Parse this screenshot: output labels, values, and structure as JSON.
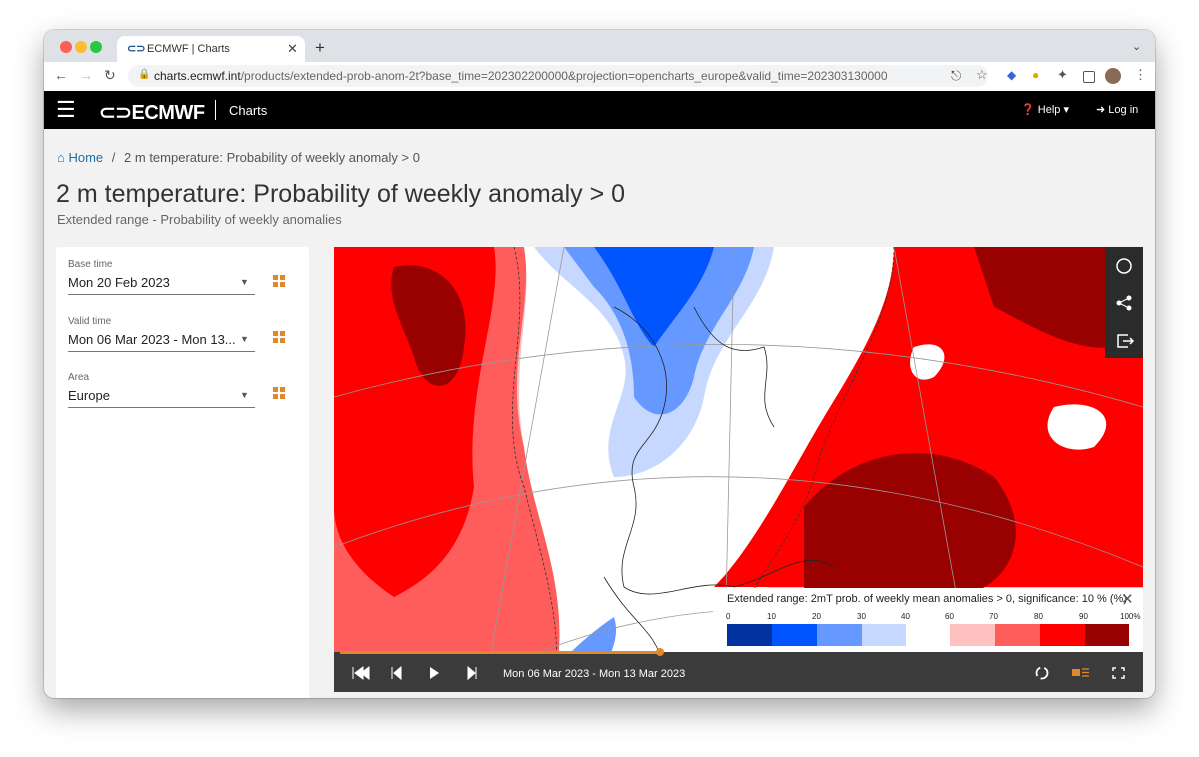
{
  "browser": {
    "tab_title": "ECMWF | Charts",
    "url_host": "charts.ecmwf.int",
    "url_path": "/products/extended-prob-anom-2t?base_time=202302200000&projection=opencharts_europe&valid_time=202303130000"
  },
  "navbar": {
    "brand": "ECMWF",
    "section": "Charts",
    "help": "Help",
    "login": "Log in"
  },
  "breadcrumb": {
    "home": "Home",
    "separator": "/",
    "current": "2 m temperature: Probability of weekly anomaly > 0"
  },
  "header": {
    "title": "2 m temperature: Probability of weekly anomaly > 0",
    "subtitle": "Extended range - Probability of weekly anomalies"
  },
  "controls": [
    {
      "label": "Base time",
      "value": "Mon 20 Feb 2023"
    },
    {
      "label": "Valid time",
      "value": "Mon 06 Mar 2023 - Mon 13..."
    },
    {
      "label": "Area",
      "value": "Europe"
    }
  ],
  "legend": {
    "title": "Extended range: 2mT prob. of weekly mean anomalies > 0, significance: 10 % (%)",
    "ticks": [
      "0",
      "10",
      "20",
      "30",
      "40",
      "60",
      "70",
      "80",
      "90",
      "100%"
    ]
  },
  "player": {
    "time": "Mon 06 Mar 2023 - Mon 13 Mar 2023"
  }
}
